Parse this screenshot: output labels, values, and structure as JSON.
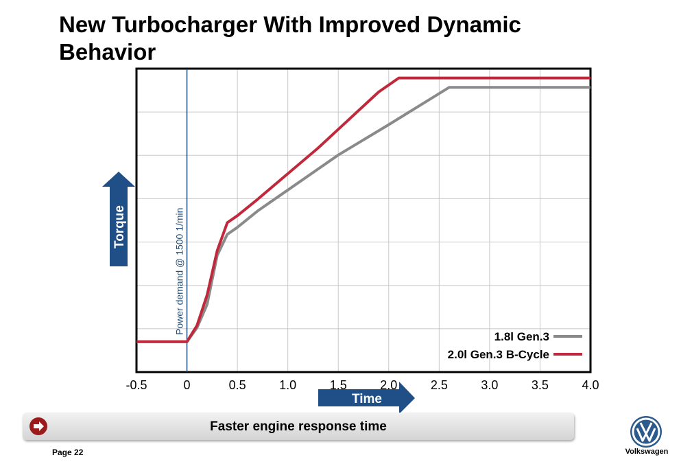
{
  "slide": {
    "title": "New Turbocharger With Improved Dynamic Behavior",
    "banner_text": "Faster engine response time",
    "page_label": "Page 22",
    "brand_name": "Volkswagen",
    "banner_icon": "arrow-right-icon",
    "logo_icon": "vw-logo-icon"
  },
  "chart_data": {
    "type": "line",
    "title": "",
    "xlabel": "Time",
    "ylabel": "Torque",
    "xlim": [
      -0.5,
      4.0
    ],
    "ylim": [
      0,
      6.5
    ],
    "x_ticks": [
      "-0.5",
      "0",
      "0.5",
      "1.0",
      "1.5",
      "2.0",
      "2.5",
      "3.0",
      "3.5",
      "4.0"
    ],
    "x_tick_values": [
      -0.5,
      0,
      0.5,
      1.0,
      1.5,
      2.0,
      2.5,
      3.0,
      3.5,
      4.0
    ],
    "y_ticks_shown": false,
    "grid": true,
    "legend_position": "bottom-right",
    "marker_line": {
      "x": 0,
      "label": "Power demand @ 1500 1/min",
      "color": "#1f4d7a"
    },
    "series": [
      {
        "name": "1.8l Gen.3",
        "color": "#8a8a8a",
        "x": [
          -0.5,
          0,
          0.1,
          0.2,
          0.3,
          0.4,
          0.5,
          0.7,
          1.0,
          1.5,
          2.0,
          2.6,
          4.0
        ],
        "y": [
          0.65,
          0.65,
          0.95,
          1.45,
          2.5,
          2.95,
          3.1,
          3.45,
          3.9,
          4.65,
          5.3,
          6.1,
          6.1
        ]
      },
      {
        "name": "2.0l Gen.3 B-Cycle",
        "color": "#c0283c",
        "x": [
          -0.5,
          0,
          0.1,
          0.2,
          0.3,
          0.4,
          0.5,
          0.7,
          1.0,
          1.3,
          1.6,
          1.9,
          2.1,
          4.0
        ],
        "y": [
          0.65,
          0.65,
          1.0,
          1.65,
          2.6,
          3.2,
          3.35,
          3.7,
          4.25,
          4.8,
          5.4,
          6.0,
          6.3,
          6.3
        ]
      }
    ]
  }
}
